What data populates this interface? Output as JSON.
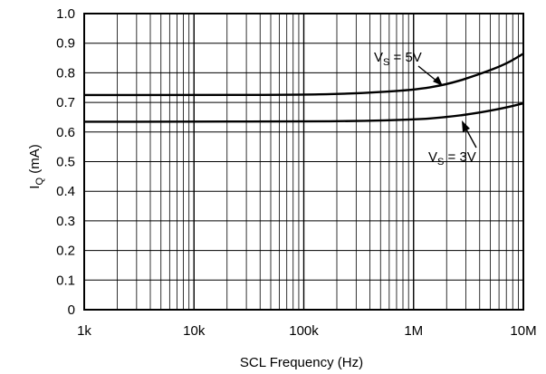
{
  "chart_data": {
    "type": "line",
    "xscale": "log",
    "xlim": [
      1000,
      10000000
    ],
    "ylim": [
      0,
      1.0
    ],
    "grid": true,
    "x_major_ticks": [
      1000,
      10000,
      100000,
      1000000,
      10000000
    ],
    "x_tick_labels": [
      "1k",
      "10k",
      "100k",
      "1M",
      "10M"
    ],
    "y_ticks": [
      0,
      0.1,
      0.2,
      0.3,
      0.4,
      0.5,
      0.6,
      0.7,
      0.8,
      0.9,
      1.0
    ],
    "y_tick_labels": [
      "0",
      "0.1",
      "0.2",
      "0.3",
      "0.4",
      "0.5",
      "0.6",
      "0.7",
      "0.8",
      "0.9",
      "1.0"
    ],
    "xlabel": "SCL Frequency (Hz)",
    "ylabel_main": "I",
    "ylabel_sub": "Q",
    "ylabel_rest": " (mA)",
    "series": [
      {
        "name_main": "V",
        "name_sub": "S",
        "name_rest": " = 5V",
        "x": [
          1000,
          10000,
          100000,
          300000,
          1000000,
          2000000,
          4000000,
          7000000,
          10000000
        ],
        "values": [
          0.725,
          0.725,
          0.726,
          0.73,
          0.742,
          0.76,
          0.795,
          0.83,
          0.865
        ]
      },
      {
        "name_main": "V",
        "name_sub": "S",
        "name_rest": " = 3V",
        "x": [
          1000,
          10000,
          100000,
          300000,
          1000000,
          2000000,
          4000000,
          7000000,
          10000000
        ],
        "values": [
          0.635,
          0.635,
          0.636,
          0.637,
          0.642,
          0.65,
          0.665,
          0.683,
          0.697
        ]
      }
    ]
  }
}
